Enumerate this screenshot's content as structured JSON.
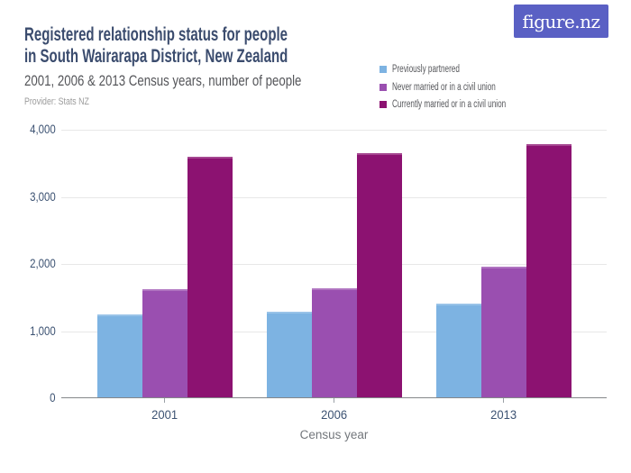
{
  "header": {
    "title_line1": "Registered relationship status for people",
    "title_line2": "in South Wairarapa District, New Zealand",
    "subtitle": "2001, 2006 & 2013 Census years, number of people",
    "provider": "Provider: Stats NZ",
    "logo_text": "figure.nz"
  },
  "colors": {
    "logo_background": "#5a60c4",
    "title_text": "#3b4c6e",
    "series_previously_partnered": "#7db3e2",
    "series_never_married": "#9a4fb0",
    "series_currently_married": "#8c1271"
  },
  "chart_data": {
    "type": "bar",
    "title": "Registered relationship status for people in South Wairarapa District, New Zealand",
    "subtitle": "2001, 2006 & 2013 Census years, number of people",
    "provider": "Stats NZ",
    "categories": [
      "2001",
      "2006",
      "2013"
    ],
    "series": [
      {
        "name": "Previously partnered",
        "color": "#7db3e2",
        "values": [
          1240,
          1280,
          1400
        ]
      },
      {
        "name": "Never married or in a civil union",
        "color": "#9a4fb0",
        "values": [
          1610,
          1620,
          1940
        ]
      },
      {
        "name": "Currently married or in a civil union",
        "color": "#8c1271",
        "values": [
          3580,
          3640,
          3770
        ]
      }
    ],
    "xlabel": "Census year",
    "ylabel": "",
    "ylim": [
      0,
      4000
    ],
    "ytick_step": 1000,
    "ytick_labels": [
      "0",
      "1,000",
      "2,000",
      "3,000",
      "4,000"
    ],
    "grid": true,
    "legend_position": "top-right"
  }
}
